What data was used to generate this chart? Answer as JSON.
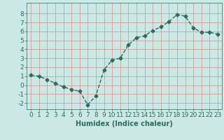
{
  "x": [
    0,
    1,
    2,
    3,
    4,
    5,
    6,
    7,
    8,
    9,
    10,
    11,
    12,
    13,
    14,
    15,
    16,
    17,
    18,
    19,
    20,
    21,
    22,
    23
  ],
  "y": [
    1.1,
    1.0,
    0.6,
    0.2,
    -0.2,
    -0.5,
    -0.7,
    -2.2,
    -1.2,
    1.7,
    2.8,
    3.0,
    4.5,
    5.3,
    5.5,
    6.1,
    6.5,
    7.1,
    7.9,
    7.7,
    6.4,
    5.9,
    5.9,
    5.7
  ],
  "line_color": "#2e6b5e",
  "marker": "D",
  "marker_size": 2.5,
  "xlabel": "Humidex (Indice chaleur)",
  "xlim": [
    -0.5,
    23.5
  ],
  "ylim": [
    -2.7,
    9.2
  ],
  "yticks": [
    -2,
    -1,
    0,
    1,
    2,
    3,
    4,
    5,
    6,
    7,
    8
  ],
  "xticks": [
    0,
    1,
    2,
    3,
    4,
    5,
    6,
    7,
    8,
    9,
    10,
    11,
    12,
    13,
    14,
    15,
    16,
    17,
    18,
    19,
    20,
    21,
    22,
    23
  ],
  "grid_color": "#d09090",
  "bg_color": "#cce8e4",
  "fig_bg": "#cce8e4",
  "xlabel_fontsize": 7,
  "tick_fontsize": 6.5,
  "linewidth": 1.0
}
